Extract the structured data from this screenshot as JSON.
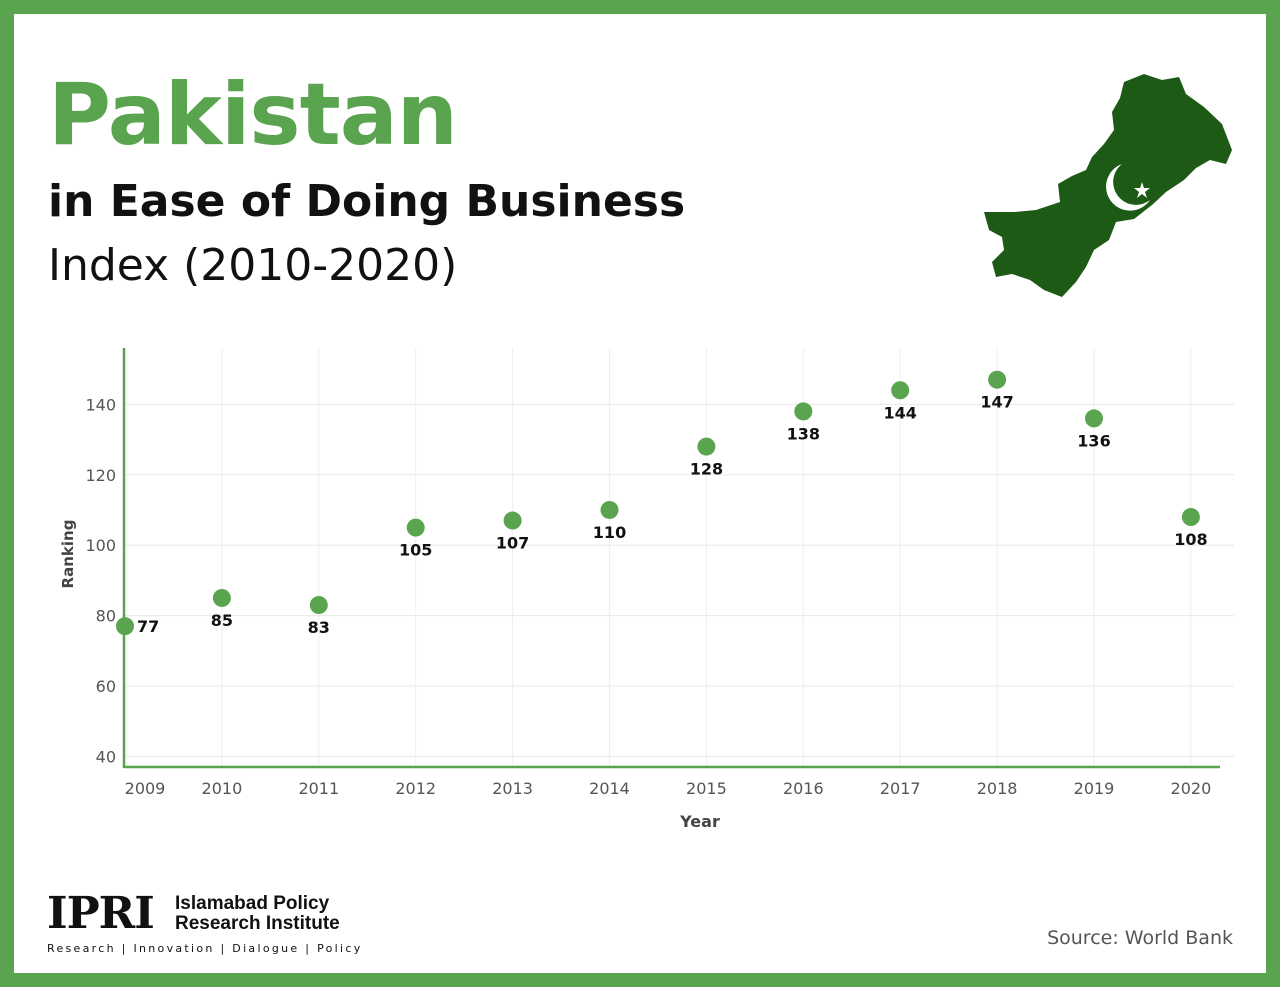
{
  "header": {
    "title": "Pakistan",
    "subtitle": "in Ease of Doing Business",
    "subtitle2": "Index (2010-2020)"
  },
  "map": {
    "icon": "pakistan-map-flag-icon",
    "fill": "#1d5a16",
    "symbol": "#ffffff"
  },
  "colors": {
    "border": "#5aa450",
    "accent": "#5aa450",
    "point": "#5aa450"
  },
  "chart_data": {
    "type": "scatter",
    "x": [
      "2009",
      "2010",
      "2011",
      "2012",
      "2013",
      "2014",
      "2015",
      "2016",
      "2017",
      "2018",
      "2019",
      "2020"
    ],
    "y": [
      77,
      85,
      83,
      105,
      107,
      110,
      128,
      138,
      144,
      147,
      136,
      108
    ],
    "data_labels": [
      "77",
      "85",
      "83",
      "105",
      "107",
      "110",
      "128",
      "138",
      "144",
      "147",
      "136",
      "108"
    ],
    "xlabel": "Year",
    "ylabel": "Ranking",
    "yticks": [
      "40",
      "60",
      "80",
      "100",
      "120",
      "140"
    ],
    "ytick_values": [
      40,
      60,
      80,
      100,
      120,
      140
    ],
    "ylim": [
      37,
      156
    ],
    "grid": true,
    "legend": "none"
  },
  "footer": {
    "logo_mark": "IPRI",
    "logo_name_line1": "Islamabad Policy",
    "logo_name_line2": "Research Institute",
    "logo_tagline": "Research | Innovation | Dialogue | Policy",
    "source": "Source: World Bank"
  }
}
